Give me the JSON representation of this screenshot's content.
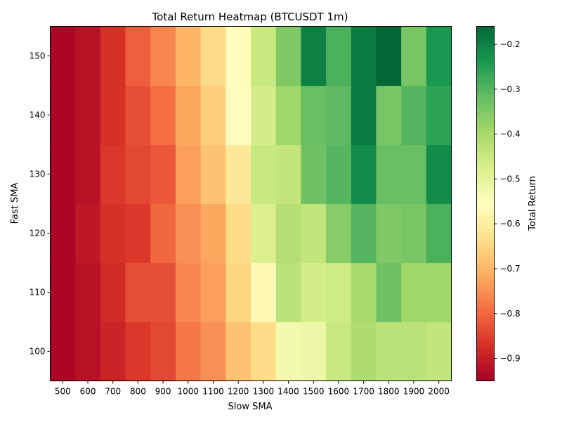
{
  "chart_data": {
    "type": "heatmap",
    "title": "Total Return Heatmap (BTCUSDT 1m)",
    "xlabel": "Slow SMA",
    "ylabel": "Fast SMA",
    "x_categories": [
      500,
      600,
      700,
      800,
      900,
      1000,
      1100,
      1200,
      1300,
      1400,
      1500,
      1600,
      1700,
      1800,
      1900,
      2000
    ],
    "y_categories": [
      100,
      110,
      120,
      130,
      140,
      150
    ],
    "values": [
      [
        -0.94,
        -0.92,
        -0.89,
        -0.86,
        -0.84,
        -0.78,
        -0.75,
        -0.68,
        -0.64,
        -0.53,
        -0.52,
        -0.45,
        -0.41,
        -0.43,
        -0.43,
        -0.44
      ],
      [
        -0.94,
        -0.92,
        -0.88,
        -0.83,
        -0.83,
        -0.76,
        -0.73,
        -0.65,
        -0.57,
        -0.43,
        -0.47,
        -0.46,
        -0.4,
        -0.33,
        -0.39,
        -0.39
      ],
      [
        -0.94,
        -0.91,
        -0.87,
        -0.86,
        -0.8,
        -0.75,
        -0.72,
        -0.64,
        -0.48,
        -0.42,
        -0.44,
        -0.36,
        -0.3,
        -0.35,
        -0.34,
        -0.29
      ],
      [
        -0.94,
        -0.92,
        -0.86,
        -0.84,
        -0.82,
        -0.73,
        -0.68,
        -0.61,
        -0.45,
        -0.44,
        -0.33,
        -0.3,
        -0.22,
        -0.32,
        -0.32,
        -0.22
      ],
      [
        -0.94,
        -0.92,
        -0.87,
        -0.83,
        -0.79,
        -0.72,
        -0.66,
        -0.56,
        -0.47,
        -0.39,
        -0.32,
        -0.31,
        -0.19,
        -0.34,
        -0.3,
        -0.26
      ],
      [
        -0.94,
        -0.92,
        -0.87,
        -0.81,
        -0.76,
        -0.7,
        -0.64,
        -0.56,
        -0.45,
        -0.35,
        -0.2,
        -0.29,
        -0.19,
        -0.15,
        -0.34,
        -0.24
      ]
    ],
    "colormap": "RdYlGn",
    "colorbar": {
      "label": "Total Return",
      "vmin": -0.95,
      "vmax": -0.16,
      "ticks": [
        -0.9,
        -0.8,
        -0.7,
        -0.6,
        -0.5,
        -0.4,
        -0.3,
        -0.2
      ],
      "tick_labels": [
        "−0.9",
        "−0.8",
        "−0.7",
        "−0.6",
        "−0.5",
        "−0.4",
        "−0.3",
        "−0.2"
      ]
    }
  }
}
